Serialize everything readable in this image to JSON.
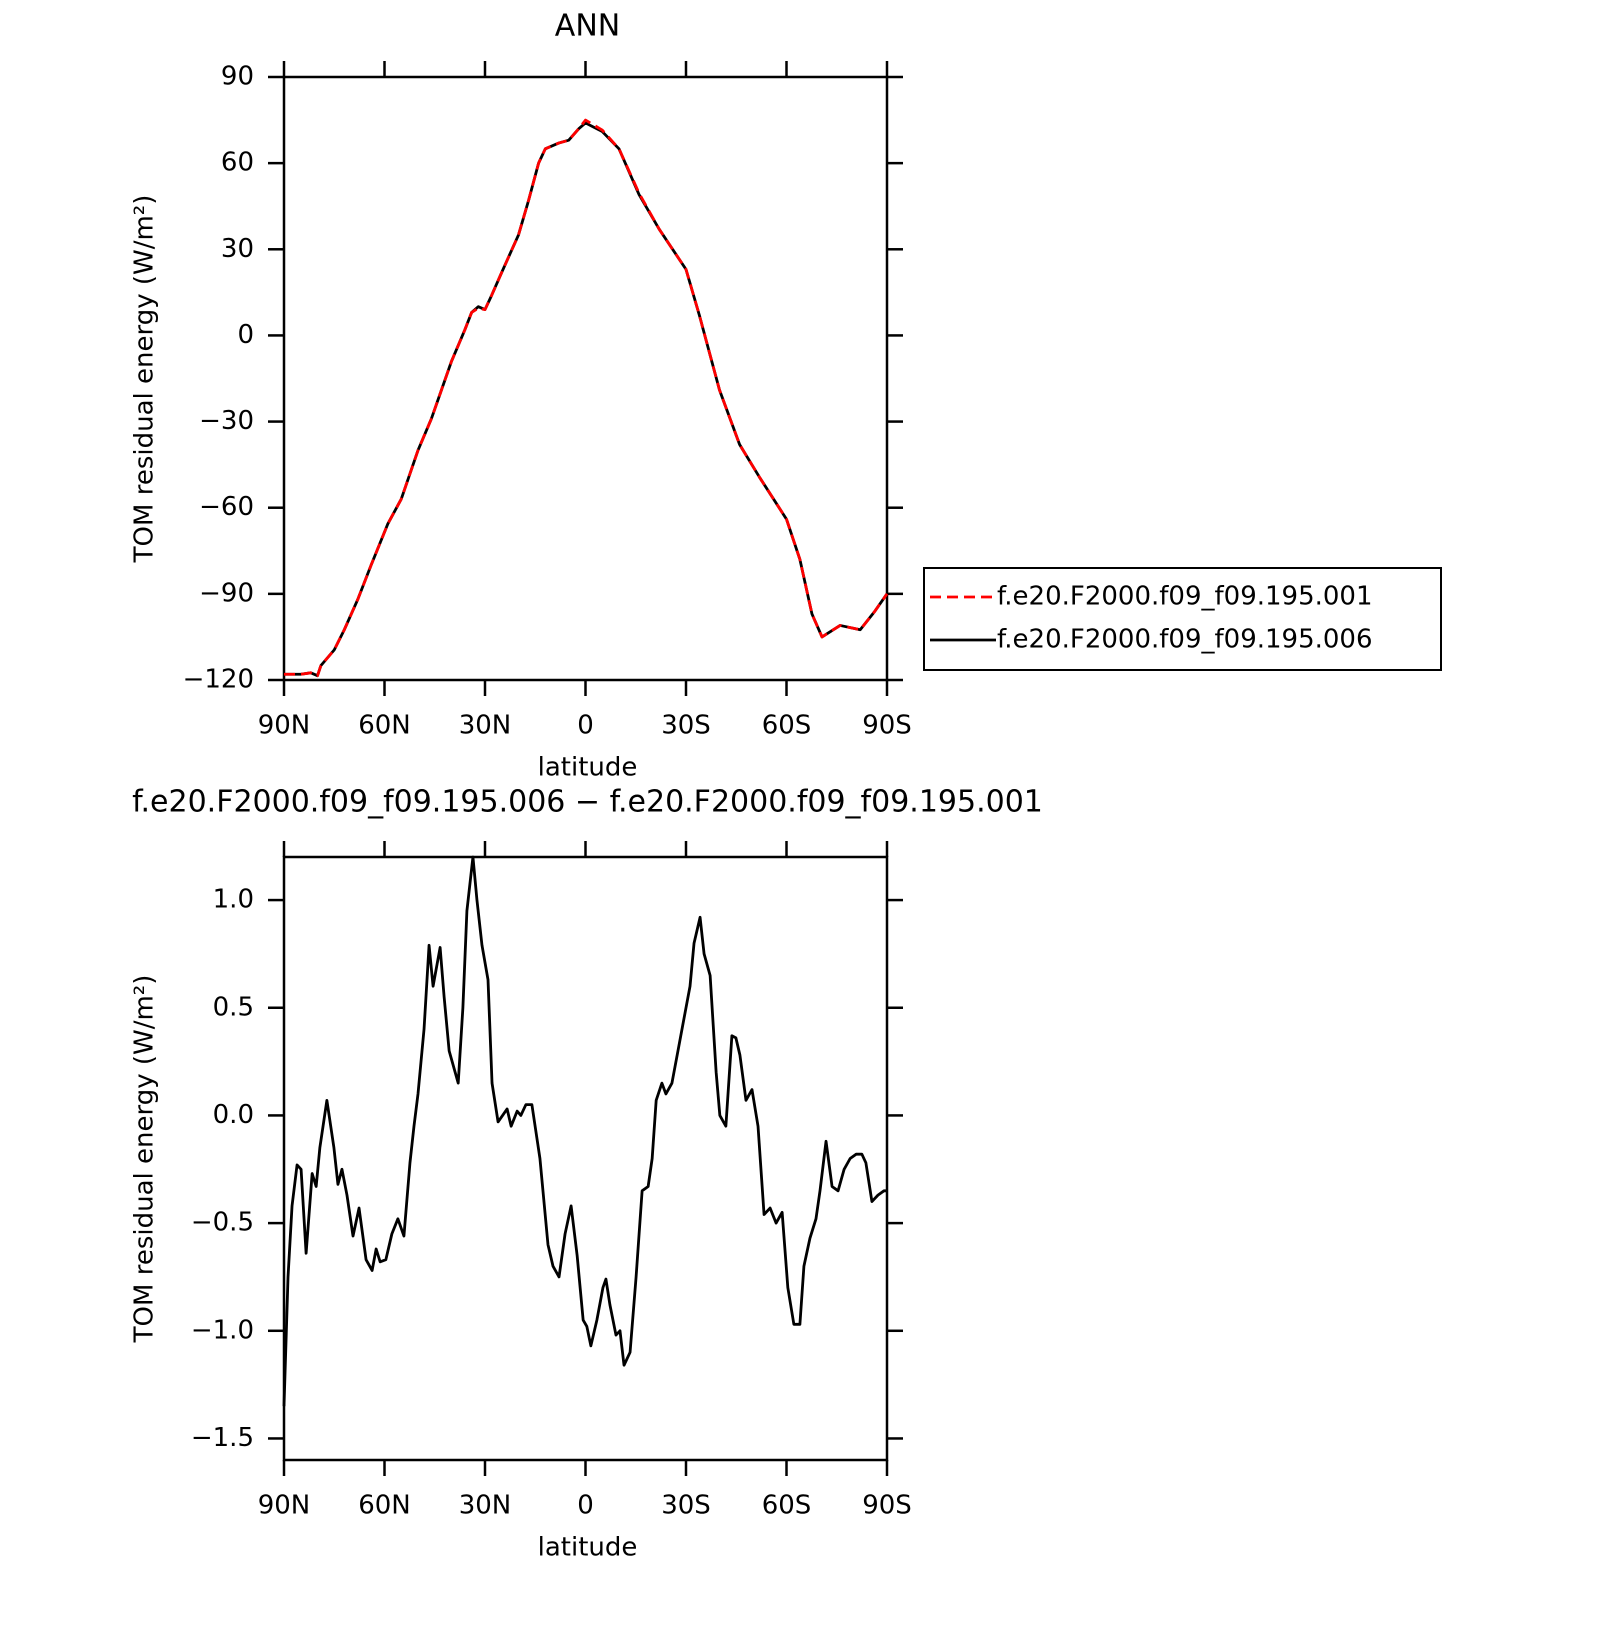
{
  "chart_data": [
    {
      "type": "line",
      "title": "ANN",
      "x_label": "latitude",
      "y_label": "TOM residual energy (W/m²)",
      "x": [
        90,
        85,
        82,
        80,
        79,
        75,
        72,
        68,
        64,
        59,
        55,
        50,
        46,
        43,
        40,
        36,
        34,
        32,
        30,
        28,
        25,
        20,
        17,
        14,
        12,
        8,
        5,
        2,
        0,
        -5,
        -10,
        -16,
        -22,
        -30,
        -34,
        -40,
        -46,
        -52,
        -60,
        -64,
        -67.6,
        -70.6,
        -76,
        -82,
        -86.4,
        -90
      ],
      "series": [
        {
          "name": "f.e20.F2000.f09_f09.195.001",
          "color": "#ff0000",
          "line_style": "dashed",
          "values": [
            -118,
            -118,
            -117.5,
            -118.5,
            -115,
            -109.5,
            -102.5,
            -92,
            -80,
            -65.6,
            -57,
            -40,
            -29,
            -19,
            -9,
            2,
            8,
            9.5,
            9,
            14,
            22,
            35,
            47,
            60,
            65,
            67,
            68,
            72,
            75,
            71.5,
            65,
            49.5,
            37,
            23,
            7,
            -19,
            -38,
            -49.5,
            -64,
            -78,
            -97,
            -105,
            -101,
            -102.5,
            -96,
            -90
          ]
        },
        {
          "name": "f.e20.F2000.f09_f09.195.006",
          "color": "#000000",
          "line_style": "solid",
          "values": [
            -118,
            -118,
            -117.5,
            -118.5,
            -115,
            -109.5,
            -102.5,
            -92,
            -80,
            -65.6,
            -57,
            -40,
            -29,
            -19,
            -9,
            2,
            8,
            10,
            9,
            14,
            22,
            35,
            47,
            60,
            65,
            67,
            68,
            72,
            74,
            71,
            65,
            49,
            37,
            23,
            7,
            -19,
            -38,
            -49.5,
            -64,
            -78,
            -97,
            -105,
            -101,
            -102.5,
            -96,
            -90
          ]
        }
      ],
      "legend": "right",
      "xlim": [
        90,
        -90
      ],
      "xticks": [
        {
          "value": 90,
          "label": "90N"
        },
        {
          "value": 60,
          "label": "60N"
        },
        {
          "value": 30,
          "label": "30N"
        },
        0,
        {
          "value": -30,
          "label": "30S"
        },
        {
          "value": -60,
          "label": "60S"
        },
        {
          "value": -90,
          "label": "90S"
        }
      ],
      "ylim": [
        -120,
        90
      ],
      "yticks": [
        {
          "value": -120,
          "label": "−120"
        },
        {
          "value": -90,
          "label": "−90"
        },
        {
          "value": -60,
          "label": "−60"
        },
        {
          "value": -30,
          "label": "−30"
        },
        0,
        30,
        60,
        90
      ]
    },
    {
      "type": "line",
      "title": "f.e20.F2000.f09_f09.195.006 − f.e20.F2000.f09_f09.195.001",
      "x_label": "latitude",
      "y_label": "TOM residual energy (W/m²)",
      "x": [
        90,
        88.8,
        87.6,
        86.1,
        84.9,
        83.4,
        81.6,
        80.4,
        79.3,
        77.2,
        75.1,
        73.9,
        72.7,
        71.2,
        69.4,
        67.6,
        65.5,
        63.7,
        62.5,
        61.3,
        59.6,
        57.8,
        56,
        54.2,
        52.4,
        51.2,
        50,
        48.2,
        46.7,
        45.5,
        43.4,
        42.2,
        40.7,
        38,
        36.6,
        35.4,
        33.6,
        32.4,
        30.9,
        29.1,
        27.9,
        26.1,
        23.4,
        22.2,
        20.4,
        19.3,
        17.8,
        16,
        13.6,
        11.2,
        9.7,
        7.9,
        6.1,
        4.3,
        2.5,
        0.7,
        -0.4,
        -1.6,
        -3.4,
        -5.2,
        -6.1,
        -7.3,
        -9.1,
        -10.3,
        -11.5,
        -13.3,
        -15.1,
        -16.9,
        -18.7,
        -19.9,
        -21.1,
        -22.8,
        -24,
        -25.8,
        -27.6,
        -29.4,
        -31.2,
        -32.4,
        -34.2,
        -35.4,
        -37.2,
        -39,
        -40.1,
        -41.9,
        -43.7,
        -44.9,
        -46.1,
        -47.9,
        -49.7,
        -51.5,
        -53.3,
        -55.1,
        -56.9,
        -58.7,
        -60.4,
        -62.2,
        -64,
        -65.2,
        -67,
        -68.8,
        -70,
        -71.8,
        -73.6,
        -75.4,
        -77.2,
        -79,
        -80.8,
        -82.5,
        -83.7,
        -85.5,
        -87.3,
        -89.1,
        -90
      ],
      "color": "#000000",
      "values": [
        -1.35,
        -0.75,
        -0.42,
        -0.23,
        -0.25,
        -0.64,
        -0.27,
        -0.33,
        -0.15,
        0.07,
        -0.15,
        -0.32,
        -0.25,
        -0.37,
        -0.56,
        -0.43,
        -0.67,
        -0.72,
        -0.62,
        -0.68,
        -0.67,
        -0.55,
        -0.48,
        -0.56,
        -0.22,
        -0.05,
        0.1,
        0.4,
        0.79,
        0.6,
        0.78,
        0.55,
        0.3,
        0.15,
        0.5,
        0.95,
        1.2,
        1.0,
        0.79,
        0.63,
        0.15,
        -0.03,
        0.03,
        -0.05,
        0.02,
        0.0,
        0.05,
        0.05,
        -0.2,
        -0.6,
        -0.7,
        -0.75,
        -0.55,
        -0.42,
        -0.65,
        -0.95,
        -0.98,
        -1.07,
        -0.95,
        -0.8,
        -0.76,
        -0.88,
        -1.02,
        -1.0,
        -1.16,
        -1.1,
        -0.75,
        -0.35,
        -0.33,
        -0.2,
        0.07,
        0.15,
        0.1,
        0.15,
        0.3,
        0.45,
        0.6,
        0.8,
        0.92,
        0.75,
        0.65,
        0.2,
        0.0,
        -0.05,
        0.37,
        0.36,
        0.28,
        0.07,
        0.12,
        -0.05,
        -0.46,
        -0.43,
        -0.5,
        -0.45,
        -0.8,
        -0.97,
        -0.97,
        -0.7,
        -0.57,
        -0.48,
        -0.35,
        -0.12,
        -0.33,
        -0.35,
        -0.25,
        -0.2,
        -0.18,
        -0.18,
        -0.22,
        -0.4,
        -0.37,
        -0.35,
        -0.35
      ],
      "xlim": [
        90,
        -90
      ],
      "xticks": [
        {
          "value": 90,
          "label": "90N"
        },
        {
          "value": 60,
          "label": "60N"
        },
        {
          "value": 30,
          "label": "30N"
        },
        0,
        {
          "value": -30,
          "label": "30S"
        },
        {
          "value": -60,
          "label": "60S"
        },
        {
          "value": -90,
          "label": "90S"
        }
      ],
      "ylim": [
        -1.6,
        1.2
      ],
      "yticks": [
        {
          "value": -1.5,
          "label": "−1.5"
        },
        {
          "value": -1.0,
          "label": "−1.0"
        },
        {
          "value": -0.5,
          "label": "−0.5"
        },
        {
          "value": 0,
          "label": "0.0"
        },
        0.5,
        {
          "value": 1.0,
          "label": "1.0"
        }
      ]
    }
  ]
}
